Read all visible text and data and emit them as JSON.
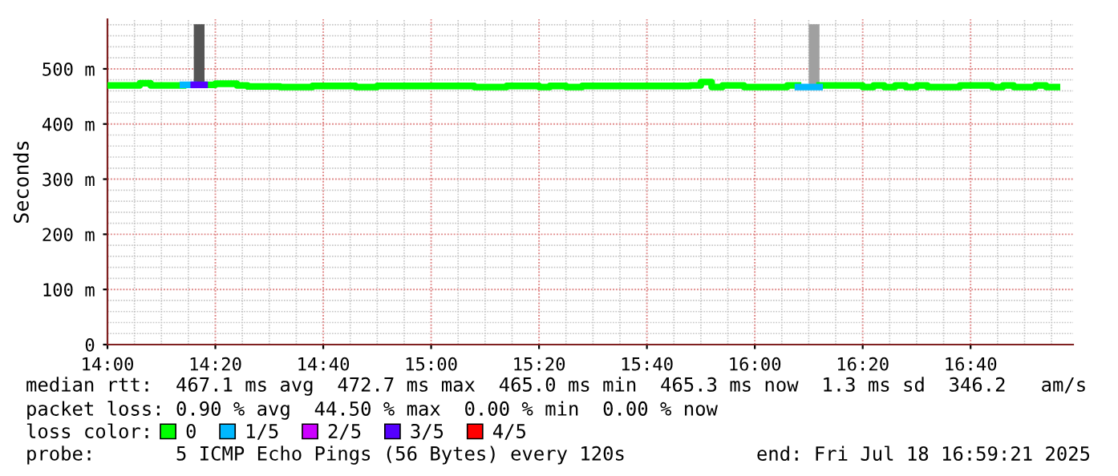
{
  "chart_data": {
    "type": "step",
    "ylabel": "Seconds",
    "legend_title": "loss color:",
    "legend": "bottom",
    "grid": true,
    "line_style": "solid",
    "marker": "none",
    "xlim": [
      "2025-07-18T14:00",
      "2025-07-18T16:59"
    ],
    "xticks": [
      {
        "value": "2025-07-18T14:00",
        "label": "14:00"
      },
      {
        "value": "2025-07-18T14:20",
        "label": "14:20"
      },
      {
        "value": "2025-07-18T14:40",
        "label": "14:40"
      },
      {
        "value": "2025-07-18T15:00",
        "label": "15:00"
      },
      {
        "value": "2025-07-18T15:20",
        "label": "15:20"
      },
      {
        "value": "2025-07-18T15:40",
        "label": "15:40"
      },
      {
        "value": "2025-07-18T16:00",
        "label": "16:00"
      },
      {
        "value": "2025-07-18T16:20",
        "label": "16:20"
      },
      {
        "value": "2025-07-18T16:40",
        "label": "16:40"
      }
    ],
    "ylim": [
      0,
      590
    ],
    "yticks": [
      0,
      {
        "value": 100,
        "label": "100 m"
      },
      {
        "value": 200,
        "label": "200 m"
      },
      {
        "value": 300,
        "label": "300 m"
      },
      {
        "value": 400,
        "label": "400 m"
      },
      {
        "value": 500,
        "label": "500 m"
      }
    ],
    "series": [
      {
        "type": "bar",
        "color": "#555555",
        "colors": [
          "#555555",
          "#a0a0a0"
        ],
        "x": [
          "2025-07-18T14:16",
          "2025-07-18T16:10"
        ],
        "base": [
          471,
          467
        ],
        "values": [
          110,
          114
        ]
      },
      {
        "name": "0",
        "color": "#00ff00",
        "x": [
          "2025-07-18T14:00",
          "2025-07-18T14:06",
          "2025-07-18T14:08",
          "2025-07-18T14:14",
          "2025-07-18T14:18",
          "2025-07-18T14:20",
          "2025-07-18T14:24",
          "2025-07-18T14:26",
          "2025-07-18T14:32",
          "2025-07-18T14:38",
          "2025-07-18T14:46",
          "2025-07-18T14:50",
          "2025-07-18T15:08",
          "2025-07-18T15:14",
          "2025-07-18T15:20",
          "2025-07-18T15:22",
          "2025-07-18T15:25",
          "2025-07-18T15:28",
          "2025-07-18T15:48",
          "2025-07-18T15:50",
          "2025-07-18T15:52",
          "2025-07-18T15:54",
          "2025-07-18T15:58",
          "2025-07-18T16:06",
          "2025-07-18T16:08",
          "2025-07-18T16:12",
          "2025-07-18T16:20",
          "2025-07-18T16:22",
          "2025-07-18T16:24",
          "2025-07-18T16:26",
          "2025-07-18T16:28",
          "2025-07-18T16:30",
          "2025-07-18T16:32",
          "2025-07-18T16:38",
          "2025-07-18T16:44",
          "2025-07-18T16:46",
          "2025-07-18T16:48",
          "2025-07-18T16:52",
          "2025-07-18T16:54",
          "2025-07-18T16:56"
        ],
        "values": [
          470,
          474,
          470,
          null,
          471,
          473,
          470,
          468,
          467,
          469,
          467,
          469,
          467,
          469,
          467,
          469,
          467,
          469,
          470,
          476,
          467,
          470,
          467,
          470,
          null,
          470,
          467,
          470,
          467,
          470,
          467,
          470,
          467,
          470,
          467,
          470,
          467,
          470,
          467,
          467
        ]
      },
      {
        "name": "1/5",
        "color": "#00b8ff",
        "x": [
          "2025-07-18T14:14",
          "2025-07-18T14:16"
        ],
        "values": [
          471,
          471
        ]
      },
      {
        "color": "#00b8ff",
        "x": [
          "2025-07-18T16:08",
          "2025-07-18T16:12"
        ],
        "values": [
          467,
          467
        ]
      },
      {
        "name": "2/5",
        "color": "#cc00ff"
      },
      {
        "name": "3/5",
        "color": "#5500ff",
        "x": [
          "2025-07-18T14:16",
          "2025-07-18T14:18"
        ],
        "values": [
          471,
          471
        ]
      },
      {
        "name": "4/5",
        "color": "#ff0000"
      }
    ],
    "annotations": [
      "median rtt:  467.1 ms avg  472.7 ms max  465.0 ms min  465.3 ms now  1.3 ms sd  346.2   am/s",
      "packet loss: 0.90 % avg  44.50 % max  0.00 % min  0.00 % now",
      "probe:       5 ICMP Echo Pings (56 Bytes) every 120s",
      "end: Fri Jul 18 16:59:21 2025"
    ]
  }
}
